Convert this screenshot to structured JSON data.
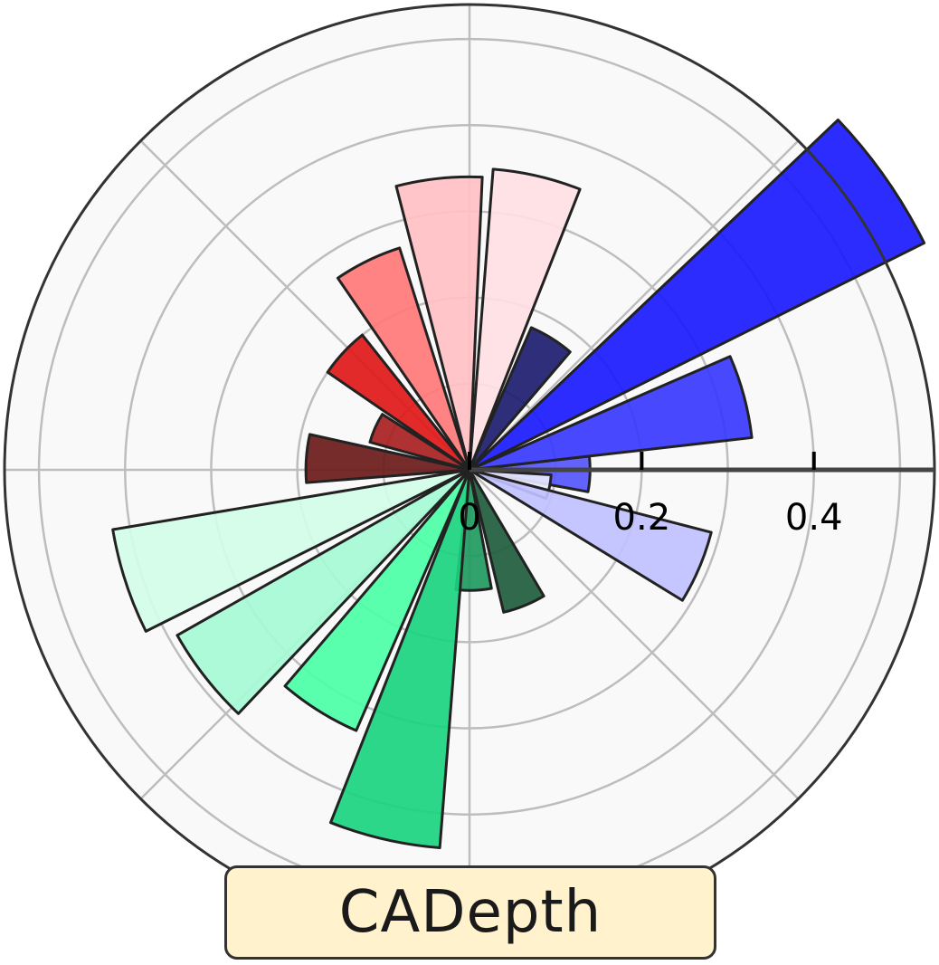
{
  "chart_data": {
    "type": "polar-bar",
    "title": "CADepth",
    "radial_range": [
      0,
      0.54
    ],
    "radial_ticks": [
      "0",
      "0.2",
      "0.4"
    ],
    "radial_tick_values": [
      0,
      0.2,
      0.4
    ],
    "grid": true,
    "bars": [
      {
        "angle_deg": -2,
        "value": 0.14,
        "color": "#5555ff"
      },
      {
        "angle_deg": -12,
        "value": 0.095,
        "color": "#e8e8ff"
      },
      {
        "angle_deg": -23,
        "value": 0.29,
        "color": "#c0c0ff"
      },
      {
        "angle_deg": -68,
        "value": 0.17,
        "color": "#1e5c3c"
      },
      {
        "angle_deg": -88,
        "value": 0.14,
        "color": "#1f9a60"
      },
      {
        "angle_deg": -103,
        "value": 0.44,
        "color": "#1ad47f"
      },
      {
        "angle_deg": -122,
        "value": 0.33,
        "color": "#4cffa6"
      },
      {
        "angle_deg": -142,
        "value": 0.39,
        "color": "#a6fad6"
      },
      {
        "angle_deg": -162,
        "value": 0.42,
        "color": "#d2fde8"
      },
      {
        "angle_deg": 176,
        "value": 0.19,
        "color": "#6b1a1a"
      },
      {
        "angle_deg": 156,
        "value": 0.12,
        "color": "#a82020"
      },
      {
        "angle_deg": 137,
        "value": 0.2,
        "color": "#e01818"
      },
      {
        "angle_deg": 116,
        "value": 0.27,
        "color": "#ff7878"
      },
      {
        "angle_deg": 96,
        "value": 0.34,
        "color": "#ffc0c4"
      },
      {
        "angle_deg": 77,
        "value": 0.35,
        "color": "#ffdfe3"
      },
      {
        "angle_deg": 58,
        "value": 0.18,
        "color": "#1c1c70"
      },
      {
        "angle_deg": 35,
        "value": 0.59,
        "color": "#1a1aff"
      },
      {
        "angle_deg": 15,
        "value": 0.33,
        "color": "#3838ff"
      }
    ],
    "colors": {
      "background": "#f9f9f9",
      "grid": "#bdbdbd",
      "outline": "#333333",
      "bar_edge": "#222222",
      "title_box": "#fff2cc"
    }
  }
}
